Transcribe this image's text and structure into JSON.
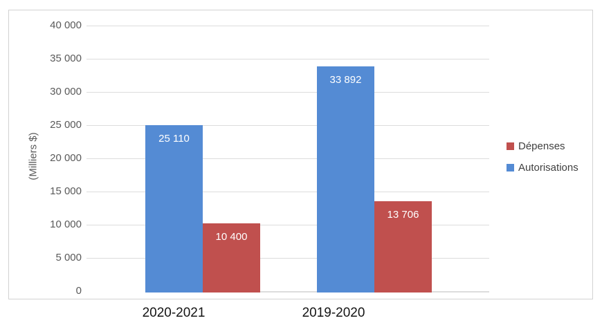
{
  "chart_data": {
    "type": "bar",
    "categories": [
      "2020-2021",
      "2019-2020"
    ],
    "series": [
      {
        "name": "Dépenses",
        "color": "#C0504E",
        "values": [
          10400,
          13706
        ],
        "labels": [
          "10 400",
          "13 706"
        ]
      },
      {
        "name": "Autorisations",
        "color": "#548BD4",
        "values": [
          25110,
          33892
        ],
        "labels": [
          "25 110",
          "33 892"
        ]
      }
    ],
    "title": "",
    "xlabel": "",
    "ylabel": "(Milliers $)",
    "ylim": [
      0,
      40000
    ],
    "ytick_step": 5000,
    "yticks": [
      "0",
      "5 000",
      "10 000",
      "15 000",
      "20 000",
      "25 000",
      "30 000",
      "35 000",
      "40 000"
    ],
    "grid": "horizontal",
    "legend_position": "right",
    "bar_order_in_group": [
      "Autorisations",
      "Dépenses"
    ],
    "data_labels": "inside-end, white"
  },
  "colors": {
    "grid": "#DCDCDC",
    "plot_border": "#D2D2D2",
    "tick_text": "#595959",
    "category_text": "#141414",
    "bar_label_text": "#FFFFFF",
    "legend_text": "#3F3F3F",
    "zero_line_red": "#C7423C"
  }
}
